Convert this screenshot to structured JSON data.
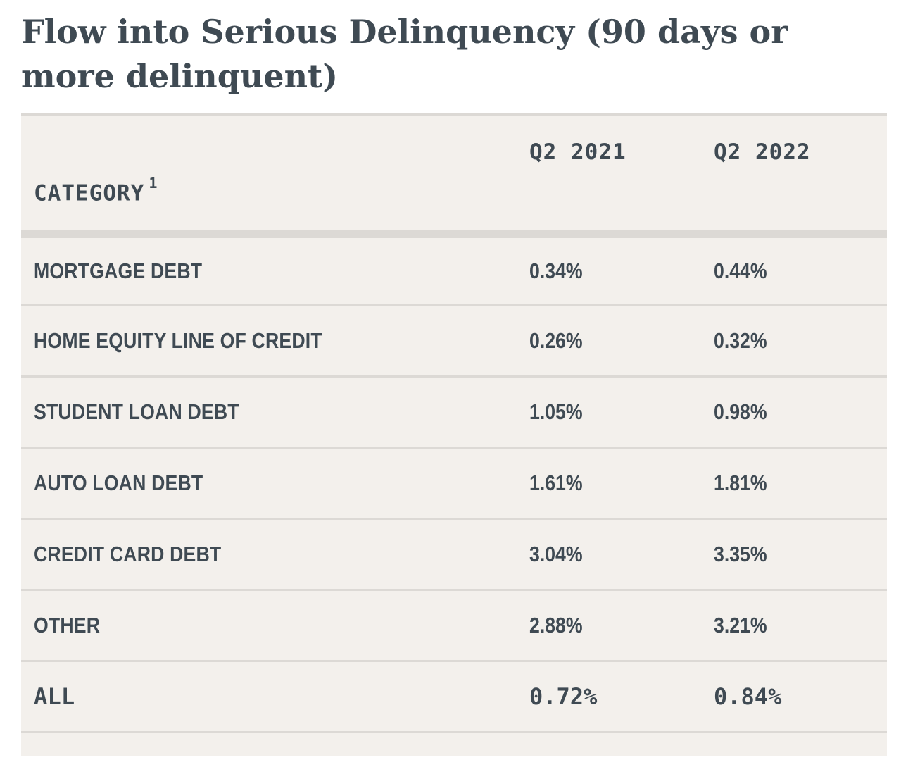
{
  "title": "Flow into Serious Delinquency (90 days or more delinquent)",
  "chart_data": {
    "type": "table",
    "title": "Flow into Serious Delinquency (90 days or more delinquent)",
    "header": {
      "category": "CATEGORY",
      "category_footnote": "1",
      "columns": [
        "Q2 2021",
        "Q2 2022"
      ]
    },
    "rows": [
      {
        "category": "MORTGAGE DEBT",
        "values": [
          "0.34%",
          "0.44%"
        ]
      },
      {
        "category": "HOME EQUITY LINE OF CREDIT",
        "values": [
          "0.26%",
          "0.32%"
        ]
      },
      {
        "category": "STUDENT LOAN DEBT",
        "values": [
          "1.05%",
          "0.98%"
        ]
      },
      {
        "category": "AUTO LOAN DEBT",
        "values": [
          "1.61%",
          "1.81%"
        ]
      },
      {
        "category": "CREDIT CARD DEBT",
        "values": [
          "3.04%",
          "3.35%"
        ]
      },
      {
        "category": "OTHER",
        "values": [
          "2.88%",
          "3.21%"
        ]
      },
      {
        "category": "ALL",
        "values": [
          "0.72%",
          "0.84%"
        ]
      }
    ],
    "colors": {
      "text": "#3f4a53",
      "table_background": "#f3f0ec",
      "rule": "#dcd9d5"
    }
  }
}
